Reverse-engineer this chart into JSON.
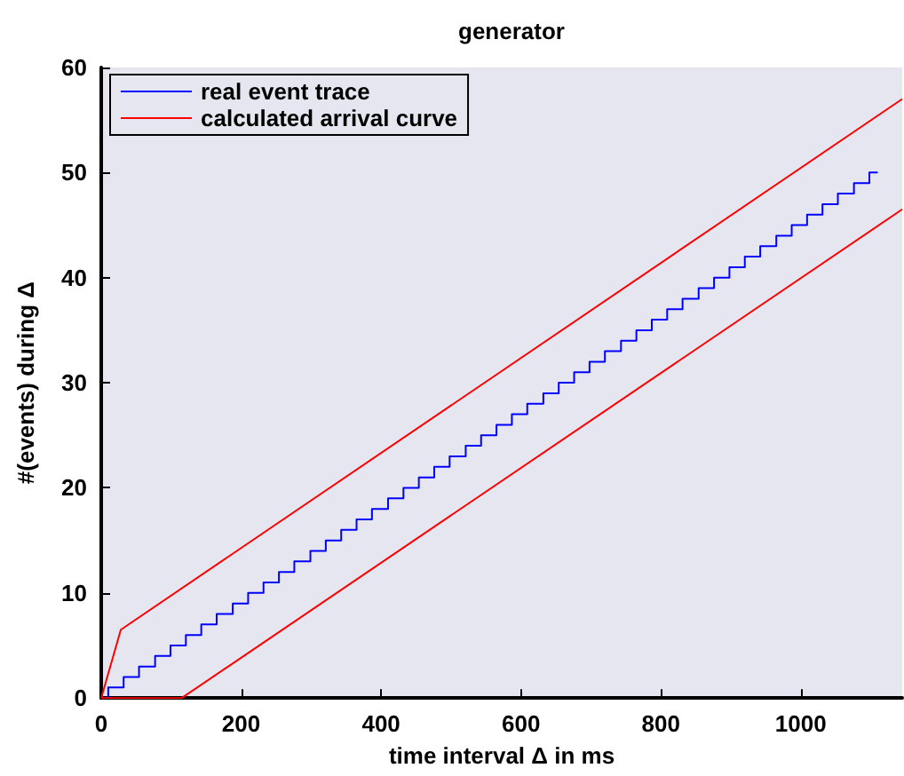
{
  "chart_data": {
    "type": "line",
    "title": "generator",
    "xlabel": "time interval Δ in ms",
    "ylabel": "#(events) during Δ",
    "xlim": [
      0,
      1145
    ],
    "xticks": [
      0,
      200,
      400,
      600,
      800,
      1000
    ],
    "ylim": [
      0,
      60
    ],
    "yticks": [
      0,
      10,
      20,
      30,
      40,
      50,
      60
    ],
    "grid": false,
    "legend": "top left",
    "marker": "none",
    "line_style": "solid",
    "series": [
      {
        "name": "real event trace",
        "type": "step",
        "color": "#0000ff",
        "x": [
          0,
          10,
          32,
          54,
          77,
          99,
          121,
          143,
          165,
          188,
          210,
          232,
          254,
          276,
          299,
          321,
          343,
          365,
          387,
          410,
          432,
          454,
          476,
          498,
          521,
          543,
          565,
          587,
          609,
          632,
          654,
          676,
          698,
          720,
          743,
          765,
          787,
          809,
          831,
          854,
          876,
          898,
          920,
          942,
          965,
          987,
          1009,
          1031,
          1053,
          1076,
          1098,
          1110
        ],
        "values": [
          0,
          1,
          2,
          3,
          4,
          5,
          6,
          7,
          8,
          9,
          10,
          11,
          12,
          13,
          14,
          15,
          16,
          17,
          18,
          19,
          20,
          21,
          22,
          23,
          24,
          25,
          26,
          27,
          28,
          29,
          30,
          31,
          32,
          33,
          34,
          35,
          36,
          37,
          38,
          39,
          40,
          41,
          42,
          43,
          44,
          45,
          46,
          47,
          48,
          49,
          50,
          50
        ]
      },
      {
        "name": "calculated arrival curve",
        "type": "line",
        "color": "#ff0000",
        "x": [
          0,
          28,
          1145
        ],
        "values": [
          0,
          6.5,
          57
        ]
      },
      {
        "type": "line",
        "color": "#ff0000",
        "x": [
          0,
          115,
          1145
        ],
        "values": [
          0,
          0,
          46.5
        ]
      }
    ]
  }
}
